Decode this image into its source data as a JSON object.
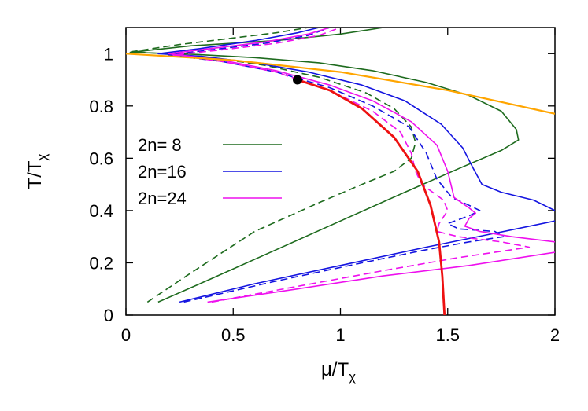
{
  "chart_data": {
    "type": "line",
    "title": "",
    "xlabel": {
      "main": "μ/T",
      "sub": "χ"
    },
    "ylabel": {
      "main": "T/T",
      "sub": "χ"
    },
    "xlim": [
      0,
      2
    ],
    "ylim": [
      0,
      1.1
    ],
    "xticks": [
      "0",
      "0.5",
      "1",
      "1.5",
      "2"
    ],
    "yticks": [
      "0",
      "0.2",
      "0.4",
      "0.6",
      "0.8",
      "1"
    ],
    "grid": false,
    "legend_position": "left-middle",
    "legend": [
      {
        "label": "2n= 8",
        "color": "#1e6b1e"
      },
      {
        "label": "2n=16",
        "color": "#1414e0"
      },
      {
        "label": "2n=24",
        "color": "#ee10ee"
      }
    ],
    "series": [
      {
        "style": "solid",
        "color": "#1e6b1e",
        "width": 1.6,
        "points": [
          [
            0.15,
            0.05
          ],
          [
            0.4,
            0.14
          ],
          [
            0.7,
            0.25
          ],
          [
            1.0,
            0.36
          ],
          [
            1.3,
            0.47
          ],
          [
            1.55,
            0.56
          ],
          [
            1.75,
            0.63
          ],
          [
            1.83,
            0.67
          ],
          [
            1.82,
            0.71
          ],
          [
            1.75,
            0.78
          ],
          [
            1.6,
            0.84
          ],
          [
            1.4,
            0.89
          ],
          [
            1.15,
            0.935
          ],
          [
            0.9,
            0.965
          ],
          [
            0.6,
            0.985
          ],
          [
            0.3,
            0.998
          ],
          [
            0.02,
            1.005
          ],
          [
            0.3,
            1.03
          ],
          [
            0.7,
            1.05
          ],
          [
            1.0,
            1.075
          ],
          [
            1.2,
            1.1
          ]
        ]
      },
      {
        "style": "dashed",
        "color": "#1e6b1e",
        "width": 1.6,
        "points": [
          [
            0.1,
            0.05
          ],
          [
            0.3,
            0.16
          ],
          [
            0.6,
            0.32
          ],
          [
            0.9,
            0.43
          ],
          [
            1.1,
            0.5
          ],
          [
            1.25,
            0.55
          ],
          [
            1.33,
            0.6
          ],
          [
            1.35,
            0.66
          ],
          [
            1.33,
            0.72
          ],
          [
            1.25,
            0.79
          ],
          [
            1.12,
            0.85
          ],
          [
            0.9,
            0.91
          ],
          [
            0.65,
            0.955
          ],
          [
            0.4,
            0.985
          ],
          [
            0.2,
            0.998
          ],
          [
            0.03,
            1.008
          ],
          [
            0.25,
            1.035
          ],
          [
            0.5,
            1.06
          ],
          [
            0.7,
            1.08
          ],
          [
            0.85,
            1.1
          ]
        ]
      },
      {
        "style": "solid",
        "color": "#1414e0",
        "width": 1.6,
        "points": [
          [
            0.25,
            0.05
          ],
          [
            0.6,
            0.12
          ],
          [
            1.0,
            0.19
          ],
          [
            1.4,
            0.26
          ],
          [
            1.7,
            0.31
          ],
          [
            2.0,
            0.36
          ]
        ]
      },
      {
        "style": "solid",
        "color": "#1414e0",
        "width": 1.6,
        "points": [
          [
            2.0,
            0.4
          ],
          [
            1.9,
            0.44
          ],
          [
            1.75,
            0.47
          ],
          [
            1.66,
            0.5
          ],
          [
            1.62,
            0.56
          ],
          [
            1.57,
            0.64
          ],
          [
            1.47,
            0.73
          ],
          [
            1.3,
            0.82
          ],
          [
            1.1,
            0.88
          ],
          [
            0.85,
            0.93
          ],
          [
            0.6,
            0.965
          ],
          [
            0.35,
            0.99
          ],
          [
            0.15,
            1.0
          ],
          [
            0.35,
            1.02
          ],
          [
            0.6,
            1.05
          ],
          [
            0.8,
            1.08
          ],
          [
            0.9,
            1.1
          ]
        ]
      },
      {
        "style": "dashed",
        "color": "#1414e0",
        "width": 1.6,
        "points": [
          [
            0.27,
            0.05
          ],
          [
            0.7,
            0.13
          ],
          [
            1.1,
            0.2
          ],
          [
            1.4,
            0.25
          ],
          [
            1.6,
            0.28
          ],
          [
            1.76,
            0.3
          ],
          [
            1.72,
            0.32
          ],
          [
            1.55,
            0.33
          ],
          [
            1.5,
            0.35
          ],
          [
            1.6,
            0.38
          ],
          [
            1.65,
            0.4
          ],
          [
            1.6,
            0.42
          ],
          [
            1.52,
            0.45
          ],
          [
            1.45,
            0.52
          ],
          [
            1.4,
            0.62
          ],
          [
            1.32,
            0.72
          ],
          [
            1.15,
            0.8
          ],
          [
            0.95,
            0.87
          ],
          [
            0.7,
            0.93
          ],
          [
            0.45,
            0.97
          ],
          [
            0.2,
            0.995
          ],
          [
            0.4,
            1.015
          ],
          [
            0.65,
            1.04
          ],
          [
            0.85,
            1.07
          ],
          [
            0.95,
            1.1
          ]
        ]
      },
      {
        "style": "solid",
        "color": "#ee10ee",
        "width": 1.6,
        "points": [
          [
            0.38,
            0.05
          ],
          [
            0.8,
            0.1
          ],
          [
            1.2,
            0.15
          ],
          [
            1.6,
            0.19
          ],
          [
            2.0,
            0.24
          ]
        ]
      },
      {
        "style": "solid",
        "color": "#ee10ee",
        "width": 1.6,
        "points": [
          [
            2.0,
            0.28
          ],
          [
            1.8,
            0.3
          ],
          [
            1.65,
            0.32
          ],
          [
            1.58,
            0.34
          ],
          [
            1.6,
            0.37
          ],
          [
            1.63,
            0.39
          ],
          [
            1.6,
            0.41
          ],
          [
            1.53,
            0.45
          ],
          [
            1.5,
            0.55
          ],
          [
            1.45,
            0.65
          ],
          [
            1.33,
            0.74
          ],
          [
            1.15,
            0.82
          ],
          [
            0.95,
            0.88
          ],
          [
            0.7,
            0.935
          ],
          [
            0.45,
            0.975
          ],
          [
            0.2,
            1.0
          ],
          [
            0.4,
            1.02
          ],
          [
            0.65,
            1.045
          ],
          [
            0.85,
            1.075
          ],
          [
            0.95,
            1.1
          ]
        ]
      },
      {
        "style": "dashed",
        "color": "#ee10ee",
        "width": 1.6,
        "points": [
          [
            0.4,
            0.05
          ],
          [
            0.8,
            0.11
          ],
          [
            1.2,
            0.17
          ],
          [
            1.55,
            0.22
          ],
          [
            1.8,
            0.25
          ],
          [
            1.88,
            0.26
          ],
          [
            1.75,
            0.28
          ],
          [
            1.55,
            0.3
          ],
          [
            1.45,
            0.32
          ],
          [
            1.46,
            0.35
          ],
          [
            1.5,
            0.4
          ],
          [
            1.48,
            0.44
          ],
          [
            1.43,
            0.47
          ],
          [
            1.38,
            0.5
          ],
          [
            1.35,
            0.55
          ],
          [
            1.33,
            0.62
          ],
          [
            1.28,
            0.7
          ],
          [
            1.15,
            0.78
          ],
          [
            0.95,
            0.86
          ],
          [
            0.7,
            0.93
          ],
          [
            0.45,
            0.97
          ],
          [
            0.22,
            0.995
          ],
          [
            0.45,
            1.015
          ],
          [
            0.7,
            1.04
          ],
          [
            0.9,
            1.07
          ],
          [
            1.0,
            1.1
          ]
        ]
      },
      {
        "style": "solid",
        "color": "#ffa500",
        "width": 2.2,
        "points": [
          [
            0,
            1.0
          ],
          [
            0.5,
            0.975
          ],
          [
            1.0,
            0.93
          ],
          [
            1.5,
            0.86
          ],
          [
            2.0,
            0.77
          ]
        ]
      },
      {
        "style": "solid",
        "color": "#ee1111",
        "width": 2.8,
        "points": [
          [
            0.8,
            0.9
          ],
          [
            0.95,
            0.86
          ],
          [
            1.1,
            0.79
          ],
          [
            1.25,
            0.68
          ],
          [
            1.36,
            0.55
          ],
          [
            1.42,
            0.42
          ],
          [
            1.46,
            0.28
          ],
          [
            1.475,
            0.15
          ],
          [
            1.485,
            0.0
          ]
        ]
      }
    ],
    "markers": [
      {
        "x": 0.8,
        "y": 0.9,
        "color": "#000000"
      }
    ]
  }
}
